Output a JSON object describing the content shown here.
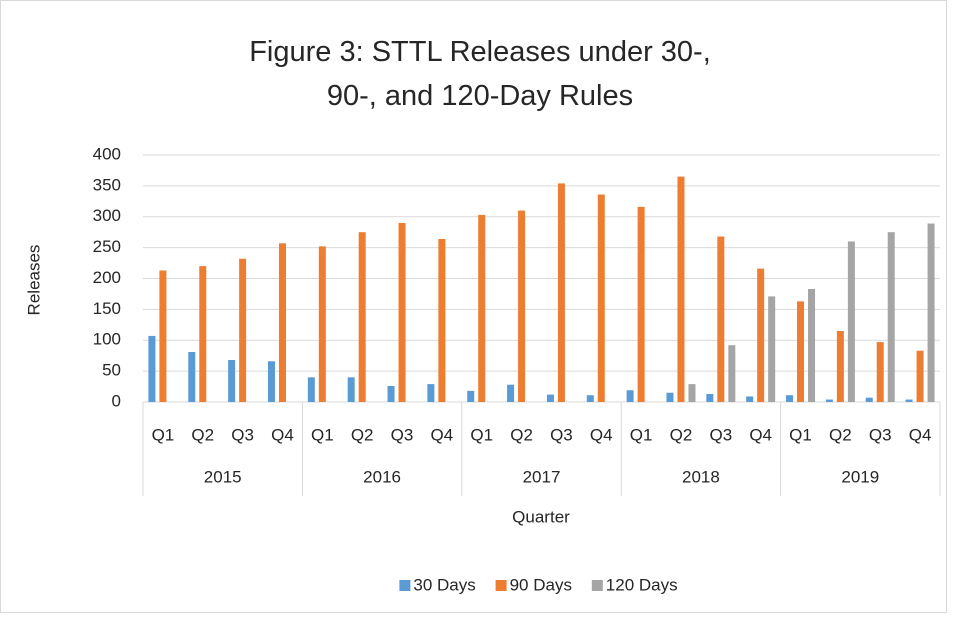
{
  "chart_data": {
    "type": "bar",
    "title": "Figure 3: STTL Releases under 30-, 90-, and 120-Day Rules",
    "y_label": "Releases",
    "x_label": "Quarter",
    "categories": [
      "Q1",
      "Q2",
      "Q3",
      "Q4",
      "Q1",
      "Q2",
      "Q3",
      "Q4",
      "Q1",
      "Q2",
      "Q3",
      "Q4",
      "Q1",
      "Q2",
      "Q3",
      "Q4",
      "Q1",
      "Q2",
      "Q3",
      "Q4"
    ],
    "groups": [
      "2015",
      "2016",
      "2017",
      "2018",
      "2019"
    ],
    "series": [
      {
        "name": "30 Days",
        "color": "#5b9bd5",
        "values": [
          107,
          81,
          68,
          66,
          40,
          40,
          26,
          29,
          18,
          28,
          12,
          11,
          19,
          15,
          13,
          9,
          11,
          4,
          7,
          4
        ]
      },
      {
        "name": "90 Days",
        "color": "#ed7d31",
        "values": [
          213,
          220,
          232,
          257,
          252,
          275,
          290,
          264,
          303,
          310,
          354,
          336,
          316,
          365,
          268,
          216,
          163,
          115,
          97,
          83
        ]
      },
      {
        "name": "120 Days",
        "color": "#a5a5a5",
        "values": [
          0,
          0,
          0,
          0,
          0,
          0,
          0,
          0,
          0,
          0,
          0,
          0,
          0,
          29,
          92,
          171,
          183,
          260,
          275,
          289
        ]
      }
    ],
    "ylim": [
      0,
      400
    ],
    "yticks": [
      0,
      50,
      100,
      150,
      200,
      250,
      300,
      350,
      400
    ],
    "grid": true,
    "legend": "bottom"
  }
}
